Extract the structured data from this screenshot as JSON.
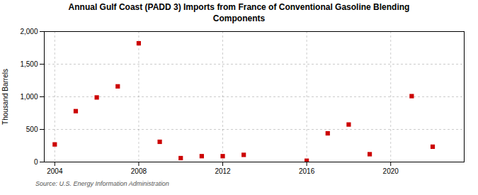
{
  "chart_data": {
    "type": "scatter",
    "title": "Annual Gulf Coast (PADD 3) Imports from France of Conventional Gasoline Blending\nComponents",
    "ylabel": "Thousand Barrels",
    "source": "Source: U.S. Energy Information Administration",
    "x": [
      2004,
      2005,
      2006,
      2007,
      2008,
      2009,
      2010,
      2011,
      2012,
      2013,
      2016,
      2017,
      2018,
      2019,
      2021,
      2022
    ],
    "values": [
      270,
      780,
      990,
      1160,
      1820,
      310,
      60,
      90,
      90,
      110,
      20,
      440,
      575,
      120,
      1010,
      235
    ],
    "color": "#cc0000",
    "marker": "square",
    "xlim": [
      2003.5,
      2023.5
    ],
    "xticks": [
      2004,
      2008,
      2012,
      2016,
      2020
    ],
    "ylim": [
      0,
      2000
    ],
    "yticks": [
      0,
      500,
      {
        "value": 1000,
        "label": "1,000"
      },
      {
        "value": 1500,
        "label": "1,500"
      },
      {
        "value": 2000,
        "label": "2,000"
      }
    ],
    "grid": true
  }
}
